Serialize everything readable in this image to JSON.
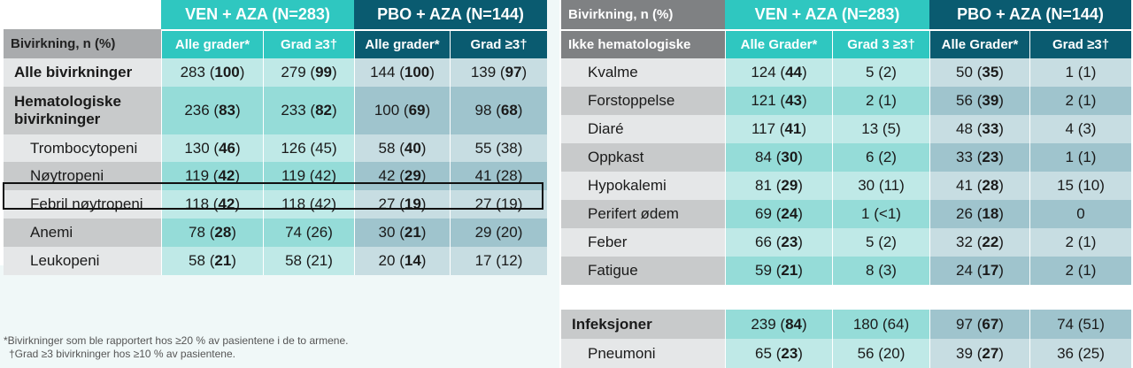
{
  "left_table": {
    "group_ven": "VEN + AZA (N=283)",
    "group_pbo": "PBO + AZA (N=144)",
    "row_header": "Bivirkning, n (%)",
    "col_all_ven": "Alle grader*",
    "col_grade_ven": "Grad ≥3†",
    "col_all_pbo": "Alle grader*",
    "col_grade_pbo": "Grad ≥3†",
    "rows": [
      {
        "label": "Alle bivirkninger",
        "c1": [
          "283",
          "100"
        ],
        "c2": [
          "279",
          "99"
        ],
        "c3": [
          "144",
          "100"
        ],
        "c4": [
          "139",
          "97"
        ]
      },
      {
        "label": "Hematologiske bivirkninger",
        "c1": [
          "236",
          "83"
        ],
        "c2": [
          "233",
          "82"
        ],
        "c3": [
          "100",
          "69"
        ],
        "c4": [
          "98",
          "68"
        ]
      },
      {
        "label": "Trombocytopeni",
        "c1": [
          "130",
          "46"
        ],
        "c2": "126 (45)",
        "c3": [
          "58",
          "40"
        ],
        "c4": "55 (38)"
      },
      {
        "label": "Nøytropeni",
        "c1": [
          "119",
          "42"
        ],
        "c2": "119 (42)",
        "c3": [
          "42",
          "29"
        ],
        "c4": "41 (28)"
      },
      {
        "label": "Febril nøytropeni",
        "c1": [
          "118",
          "42"
        ],
        "c2": "118 (42)",
        "c3": [
          "27",
          "19"
        ],
        "c4": "27 (19)"
      },
      {
        "label": "Anemi",
        "c1": [
          "78",
          "28"
        ],
        "c2": "74 (26)",
        "c3": [
          "30",
          "21"
        ],
        "c4": "29 (20)"
      },
      {
        "label": "Leukopeni",
        "c1": [
          "58",
          "21"
        ],
        "c2": "58 (21)",
        "c3": [
          "20",
          "14"
        ],
        "c4": "17 (12)"
      }
    ]
  },
  "right_table": {
    "row_header_1": "Bivirkning, n (%)",
    "row_header_2": "Ikke hematologiske",
    "group_ven": "VEN + AZA (N=283)",
    "group_pbo": "PBO + AZA (N=144)",
    "col_all_ven": "Alle Grader*",
    "col_grade_ven": "Grad 3 ≥3†",
    "col_all_pbo": "Alle Grader*",
    "col_grade_pbo": "Grad ≥3†",
    "rows": [
      {
        "label": "Kvalme",
        "c1": [
          "124",
          "44"
        ],
        "c2": "5 (2)",
        "c3": [
          "50",
          "35"
        ],
        "c4": "1 (1)"
      },
      {
        "label": "Forstoppelse",
        "c1": [
          "121",
          "43"
        ],
        "c2": "2 (1)",
        "c3": [
          "56",
          "39"
        ],
        "c4": "2 (1)"
      },
      {
        "label": "Diaré",
        "c1": [
          "117",
          "41"
        ],
        "c2": "13 (5)",
        "c3": [
          "48",
          "33"
        ],
        "c4": "4 (3)"
      },
      {
        "label": "Oppkast",
        "c1": [
          "84",
          "30"
        ],
        "c2": "6 (2)",
        "c3": [
          "33",
          "23"
        ],
        "c4": "1 (1)"
      },
      {
        "label": "Hypokalemi",
        "c1": [
          "81",
          "29"
        ],
        "c2": "30 (11)",
        "c3": [
          "41",
          "28"
        ],
        "c4": "15 (10)"
      },
      {
        "label": "Perifert ødem",
        "c1": [
          "69",
          "24"
        ],
        "c2": "1 (<1)",
        "c3": [
          "26",
          "18"
        ],
        "c4": "0"
      },
      {
        "label": "Feber",
        "c1": [
          "66",
          "23"
        ],
        "c2": "5 (2)",
        "c3": [
          "32",
          "22"
        ],
        "c4": "2 (1)"
      },
      {
        "label": "Fatigue",
        "c1": [
          "59",
          "21"
        ],
        "c2": "8 (3)",
        "c3": [
          "24",
          "17"
        ],
        "c4": "2 (1)"
      }
    ],
    "infection_rows": [
      {
        "label": "Infeksjoner",
        "c1": [
          "239",
          "84"
        ],
        "c2": "180 (64)",
        "c3": [
          "97",
          "67"
        ],
        "c4": "74 (51)"
      },
      {
        "label": "Pneumoni",
        "c1": [
          "65",
          "23"
        ],
        "c2": "56 (20)",
        "c3": [
          "39",
          "27"
        ],
        "c4": "36 (25)"
      }
    ]
  },
  "footnotes": {
    "line1": "*Bivirkninger som ble rapportert hos ≥20 % av pasientene i de to armene.",
    "line2": "†Grad ≥3 bivirkninger hos ≥10 % av pasientene."
  }
}
